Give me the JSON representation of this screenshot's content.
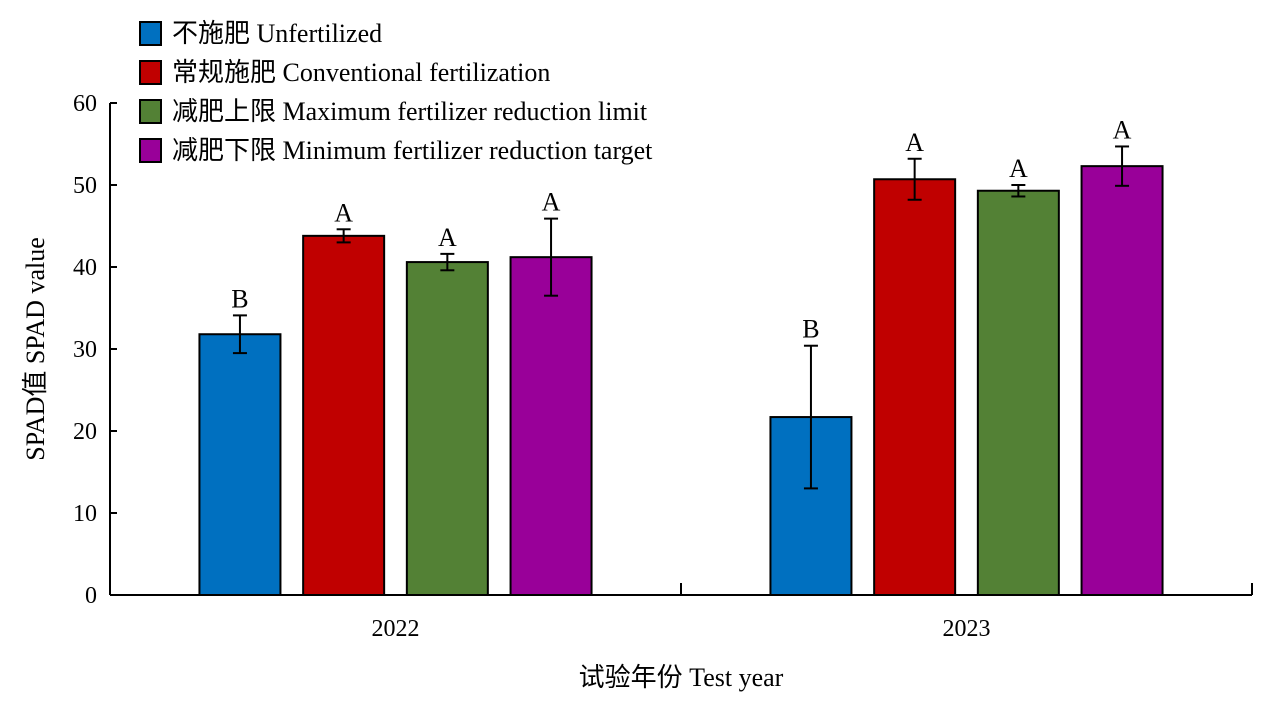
{
  "chart_data": {
    "type": "bar",
    "title": "",
    "xlabel": "试验年份 Test year",
    "ylabel": "SPAD值 SPAD value",
    "ylim": [
      0,
      60
    ],
    "yticks": [
      0,
      10,
      20,
      30,
      40,
      50,
      60
    ],
    "categories": [
      "2022",
      "2023"
    ],
    "grid": false,
    "legend_position": "top-left",
    "series": [
      {
        "name": "不施肥 Unfertilized",
        "color": "#0070c0",
        "values": [
          31.8,
          21.7
        ],
        "errors": [
          2.3,
          8.7
        ],
        "labels": [
          "B",
          "B"
        ]
      },
      {
        "name": "常规施肥 Conventional fertilization",
        "color": "#c00000",
        "values": [
          43.8,
          50.7
        ],
        "errors": [
          0.8,
          2.5
        ],
        "labels": [
          "A",
          "A"
        ]
      },
      {
        "name": "减肥上限 Maximum fertilizer reduction limit",
        "color": "#538135",
        "values": [
          40.6,
          49.3
        ],
        "errors": [
          1.0,
          0.7
        ],
        "labels": [
          "A",
          "A"
        ]
      },
      {
        "name": "减肥下限 Minimum fertilizer reduction target",
        "color": "#990099",
        "values": [
          41.2,
          52.3
        ],
        "errors": [
          4.7,
          2.4
        ],
        "labels": [
          "A",
          "A"
        ]
      }
    ]
  }
}
